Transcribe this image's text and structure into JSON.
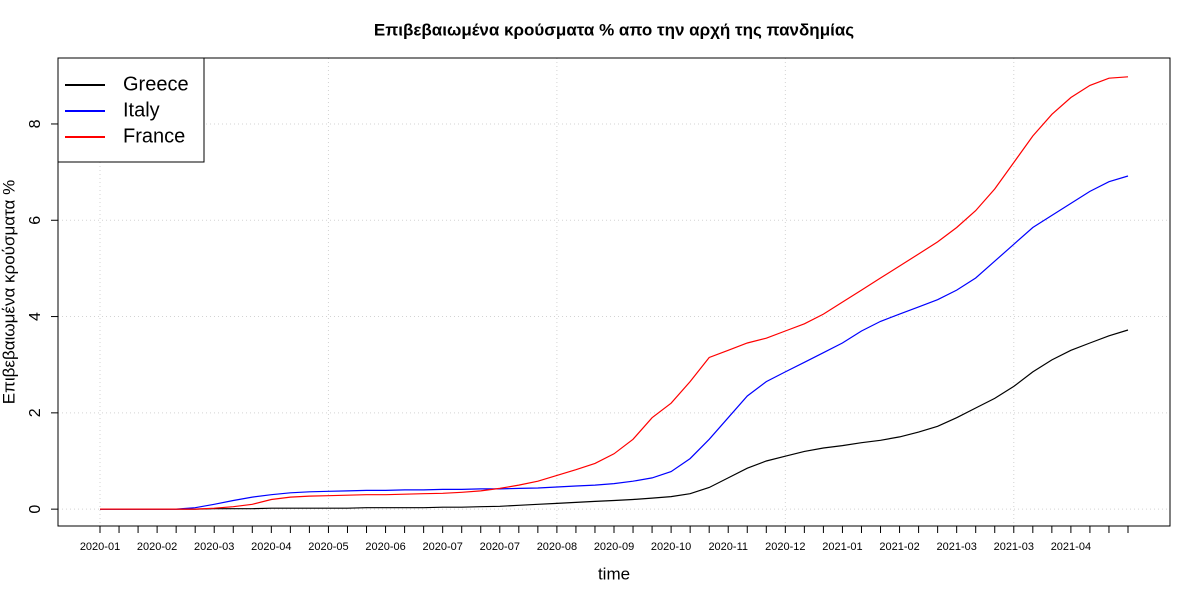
{
  "chart_data": {
    "type": "line",
    "title": "Επιβεβαιωμένα κρούσματα % απο την αρχή της πανδημίας",
    "x_label": "time",
    "y_label": "Επιβεβαιωμένα κρούσματα %",
    "categories": [
      "2020-01",
      null,
      null,
      "2020-02",
      null,
      null,
      "2020-03",
      null,
      null,
      "2020-04",
      null,
      null,
      "2020-05",
      null,
      null,
      "2020-06",
      null,
      null,
      "2020-07",
      null,
      null,
      "2020-07",
      null,
      null,
      "2020-08",
      null,
      null,
      "2020-09",
      null,
      null,
      "2020-10",
      null,
      null,
      "2020-11",
      null,
      null,
      "2020-12",
      null,
      null,
      "2021-01",
      null,
      null,
      "2021-02",
      null,
      null,
      "2021-03",
      null,
      null,
      "2021-03",
      null,
      null,
      "2021-04",
      null,
      null,
      null
    ],
    "series": [
      {
        "name": "Greece",
        "color": "#000000",
        "values": [
          0,
          0,
          0,
          0,
          0,
          0,
          0.01,
          0.01,
          0.01,
          0.02,
          0.02,
          0.02,
          0.02,
          0.02,
          0.03,
          0.03,
          0.03,
          0.03,
          0.04,
          0.04,
          0.05,
          0.06,
          0.08,
          0.1,
          0.12,
          0.14,
          0.16,
          0.18,
          0.2,
          0.23,
          0.26,
          0.32,
          0.45,
          0.65,
          0.85,
          1.0,
          1.1,
          1.2,
          1.27,
          1.32,
          1.38,
          1.43,
          1.5,
          1.6,
          1.72,
          1.9,
          2.1,
          2.3,
          2.55,
          2.85,
          3.1,
          3.3,
          3.45,
          3.6,
          3.72
        ]
      },
      {
        "name": "Italy",
        "color": "#0000ff",
        "values": [
          0,
          0,
          0,
          0,
          0,
          0.03,
          0.1,
          0.18,
          0.25,
          0.3,
          0.34,
          0.36,
          0.37,
          0.38,
          0.39,
          0.39,
          0.4,
          0.4,
          0.41,
          0.41,
          0.42,
          0.42,
          0.43,
          0.44,
          0.46,
          0.48,
          0.5,
          0.53,
          0.58,
          0.65,
          0.78,
          1.05,
          1.45,
          1.9,
          2.35,
          2.65,
          2.85,
          3.05,
          3.25,
          3.45,
          3.7,
          3.9,
          4.05,
          4.2,
          4.35,
          4.55,
          4.8,
          5.15,
          5.5,
          5.85,
          6.1,
          6.35,
          6.6,
          6.8,
          6.92
        ]
      },
      {
        "name": "France",
        "color": "#ff0000",
        "values": [
          0,
          0,
          0,
          0,
          0,
          0,
          0.02,
          0.05,
          0.1,
          0.2,
          0.25,
          0.27,
          0.28,
          0.29,
          0.3,
          0.3,
          0.31,
          0.32,
          0.33,
          0.35,
          0.38,
          0.43,
          0.5,
          0.58,
          0.7,
          0.82,
          0.95,
          1.15,
          1.45,
          1.9,
          2.2,
          2.65,
          3.15,
          3.3,
          3.45,
          3.55,
          3.7,
          3.85,
          4.05,
          4.3,
          4.55,
          4.8,
          5.05,
          5.3,
          5.55,
          5.85,
          6.2,
          6.65,
          7.2,
          7.75,
          8.2,
          8.55,
          8.8,
          8.95,
          8.98
        ]
      }
    ],
    "ylim": [
      -0.35,
      9.37
    ],
    "yticks": [
      0,
      2,
      4,
      6,
      8
    ],
    "grid": true,
    "legend": "top-left"
  }
}
